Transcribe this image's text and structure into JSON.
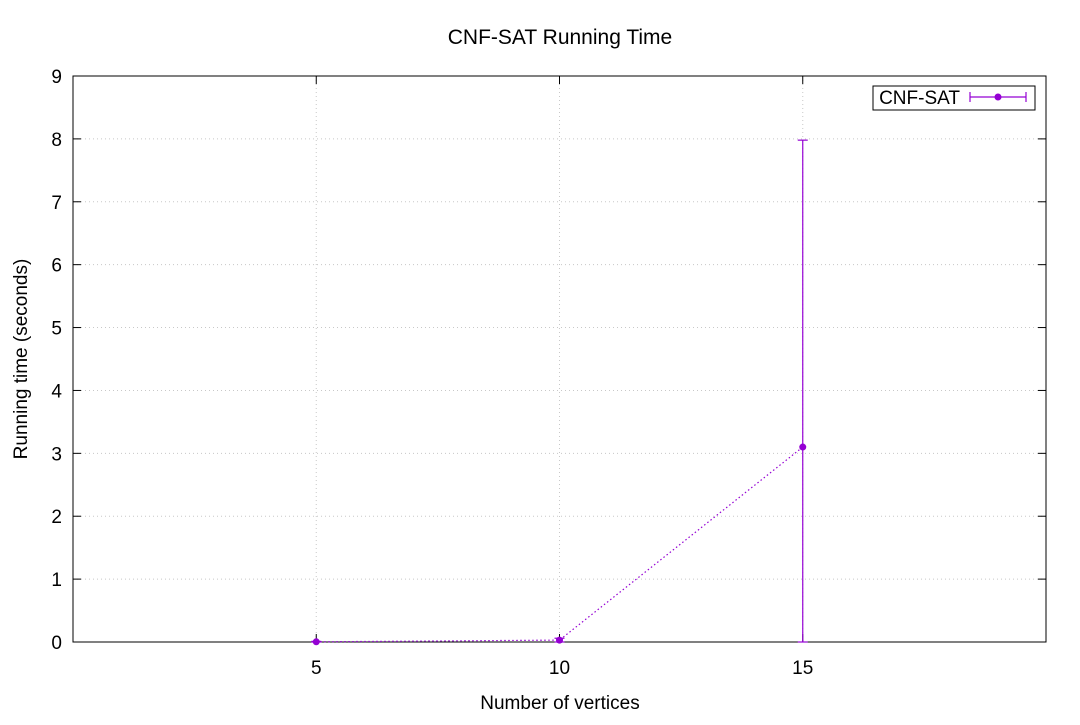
{
  "chart_data": {
    "type": "line",
    "title": "CNF-SAT Running Time",
    "xlabel": "Number of vertices",
    "ylabel": "Running time (seconds)",
    "xlim": [
      0,
      20
    ],
    "ylim": [
      0,
      9
    ],
    "x_ticks": [
      5,
      10,
      15
    ],
    "y_ticks": [
      0,
      1,
      2,
      3,
      4,
      5,
      6,
      7,
      8,
      9
    ],
    "grid": true,
    "legend_position": "top-right",
    "series": [
      {
        "name": "CNF-SAT",
        "color": "#9400d3",
        "line_style": "dotted",
        "marker": "circle",
        "error_bars": true,
        "points": [
          {
            "x": 5,
            "y": 0.003,
            "ylow": 0.0,
            "yhigh": 0.01
          },
          {
            "x": 10,
            "y": 0.03,
            "ylow": 0.0,
            "yhigh": 0.06
          },
          {
            "x": 15,
            "y": 3.1,
            "ylow": 0.0,
            "yhigh": 7.98
          }
        ]
      }
    ]
  }
}
